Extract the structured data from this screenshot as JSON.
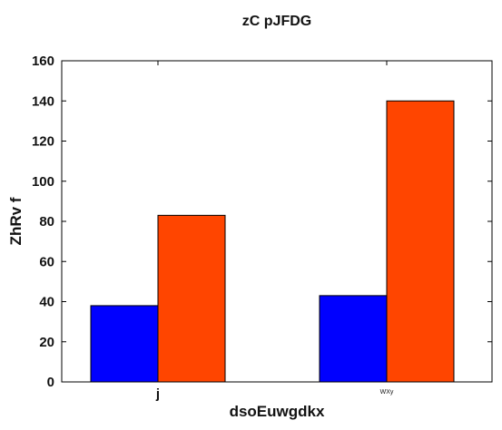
{
  "chart_data": {
    "type": "bar",
    "title": "zC  pJFDG",
    "xlabel": "dsoEuwgdkx",
    "ylabel": "ZhRv  f",
    "categories": [
      "j",
      "WXy"
    ],
    "series": [
      {
        "values": [
          38,
          43
        ],
        "color": "#0000ff"
      },
      {
        "values": [
          83,
          140
        ],
        "color": "#ff4500"
      }
    ],
    "ylim": [
      0,
      160
    ],
    "yticks": [
      0,
      20,
      40,
      60,
      80,
      100,
      120,
      140,
      160
    ],
    "grid": false
  }
}
